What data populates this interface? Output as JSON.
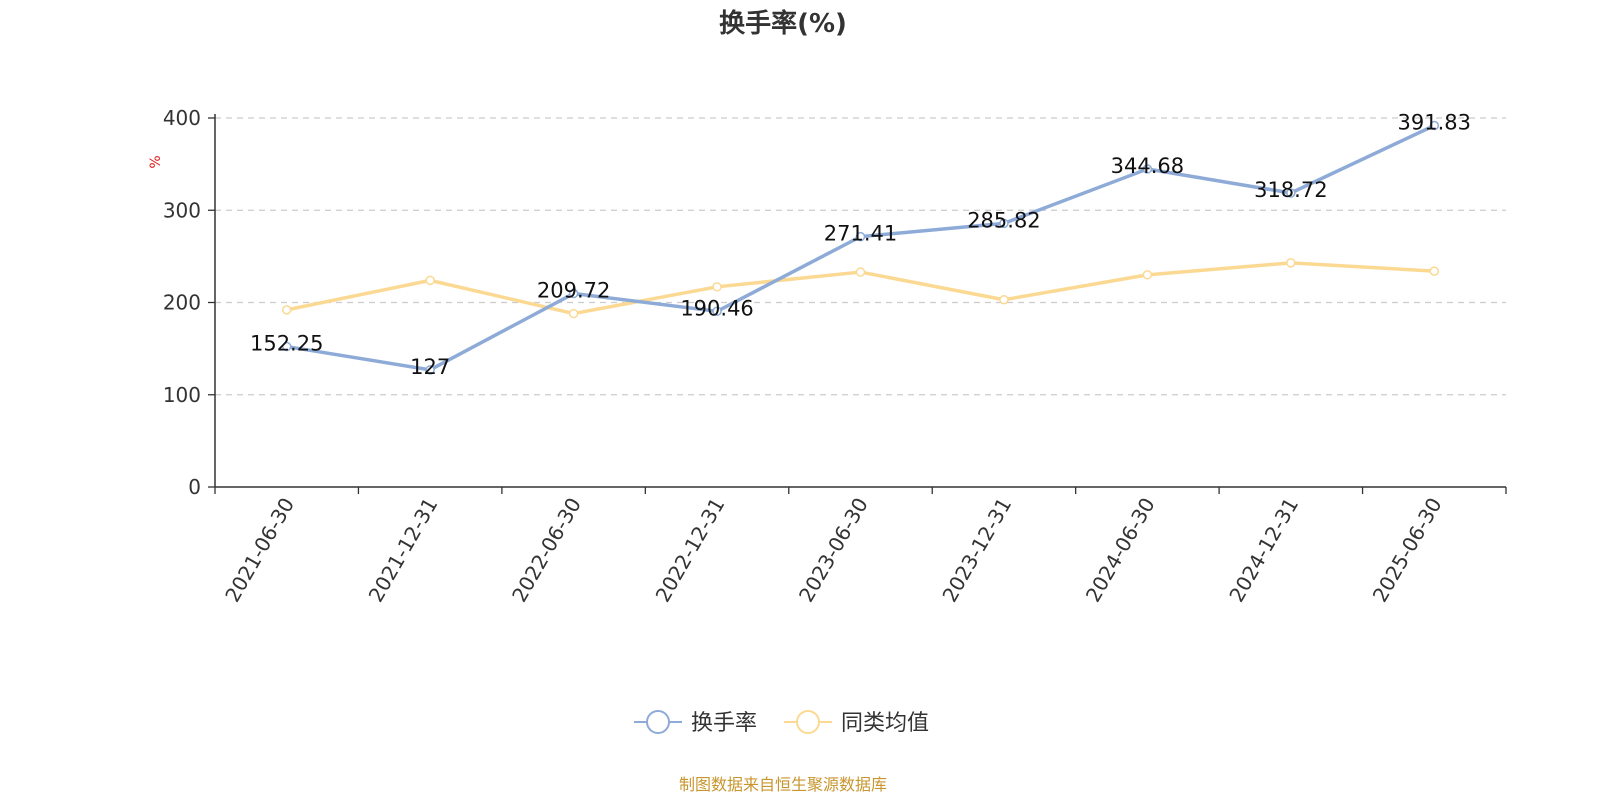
{
  "chart_data": {
    "type": "line",
    "title": "换手率(%)",
    "ylabel": "%",
    "ylim": [
      0,
      400
    ],
    "yticks": [
      0,
      100,
      200,
      300,
      400
    ],
    "grid": true,
    "legend_position": "bottom",
    "categories": [
      "2021-06-30",
      "2021-12-31",
      "2022-06-30",
      "2022-12-31",
      "2023-06-30",
      "2023-12-31",
      "2024-06-30",
      "2024-12-31",
      "2025-06-30"
    ],
    "series": [
      {
        "name": "换手率",
        "color": "#8eabd8",
        "values": [
          152.25,
          127,
          209.72,
          190.46,
          271.41,
          285.82,
          344.68,
          318.72,
          391.83
        ],
        "labels": [
          "152.25",
          "127",
          "209.72",
          "190.46",
          "271.41",
          "285.82",
          "344.68",
          "318.72",
          "391.83"
        ],
        "show_labels": true
      },
      {
        "name": "同类均值",
        "color": "#fbd993",
        "values": [
          192,
          224,
          188,
          217,
          233,
          203,
          230,
          243,
          234
        ],
        "show_labels": false
      }
    ]
  },
  "footer": {
    "source": "制图数据来自恒生聚源数据库",
    "color": "#c8962e"
  },
  "colors": {
    "unit": "#e02020",
    "axis": "#333333",
    "grid": "#cccccc"
  }
}
